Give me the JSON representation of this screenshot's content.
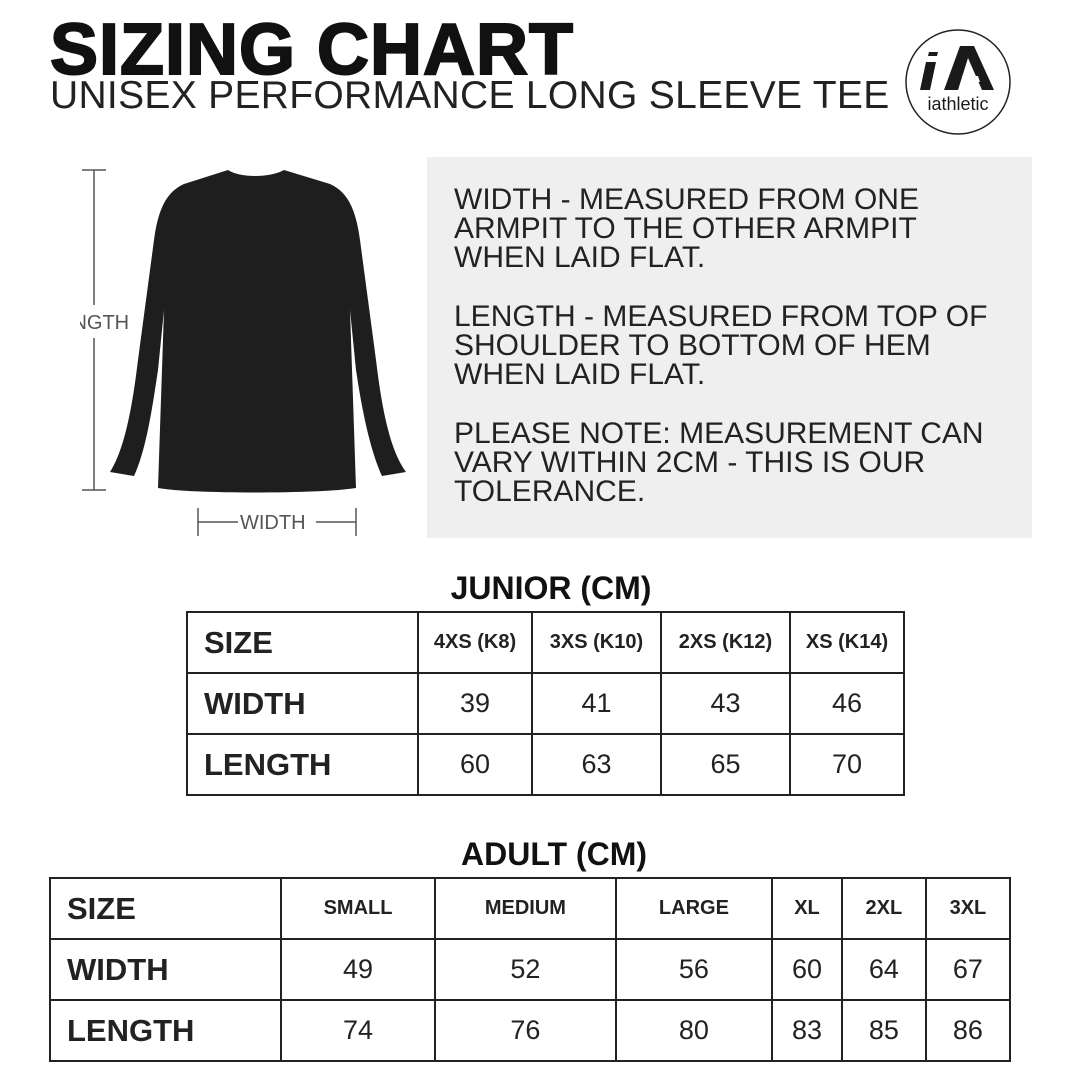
{
  "header": {
    "title": "SIZING CHART",
    "subtitle": "UNISEX PERFORMANCE LONG SLEEVE TEE"
  },
  "logo": {
    "text": "iAthletic",
    "mark": "iA"
  },
  "diagram": {
    "length_label": "LENGTH",
    "width_label": "WIDTH",
    "shirt_color": "#1e1e1e"
  },
  "notes": [
    "WIDTH - MEASURED FROM ONE ARMPIT TO THE OTHER ARMPIT WHEN LAID FLAT.",
    "LENGTH - MEASURED FROM TOP OF SHOULDER TO BOTTOM OF HEM WHEN LAID FLAT.",
    "PLEASE NOTE: MEASUREMENT CAN VARY WITHIN 2CM - THIS IS OUR TOLERANCE."
  ],
  "junior": {
    "title": "JUNIOR (CM)",
    "rows": [
      [
        "SIZE",
        "4XS (K8)",
        "3XS (K10)",
        "2XS (K12)",
        "XS (K14)"
      ],
      [
        "WIDTH",
        "39",
        "41",
        "43",
        "46"
      ],
      [
        "LENGTH",
        "60",
        "63",
        "65",
        "70"
      ]
    ]
  },
  "adult": {
    "title": "ADULT (CM)",
    "rows": [
      [
        "SIZE",
        "SMALL",
        "MEDIUM",
        "LARGE",
        "XL",
        "2XL",
        "3XL"
      ],
      [
        "WIDTH",
        "49",
        "52",
        "56",
        "60",
        "64",
        "67"
      ],
      [
        "LENGTH",
        "74",
        "76",
        "80",
        "83",
        "85",
        "86"
      ]
    ]
  }
}
